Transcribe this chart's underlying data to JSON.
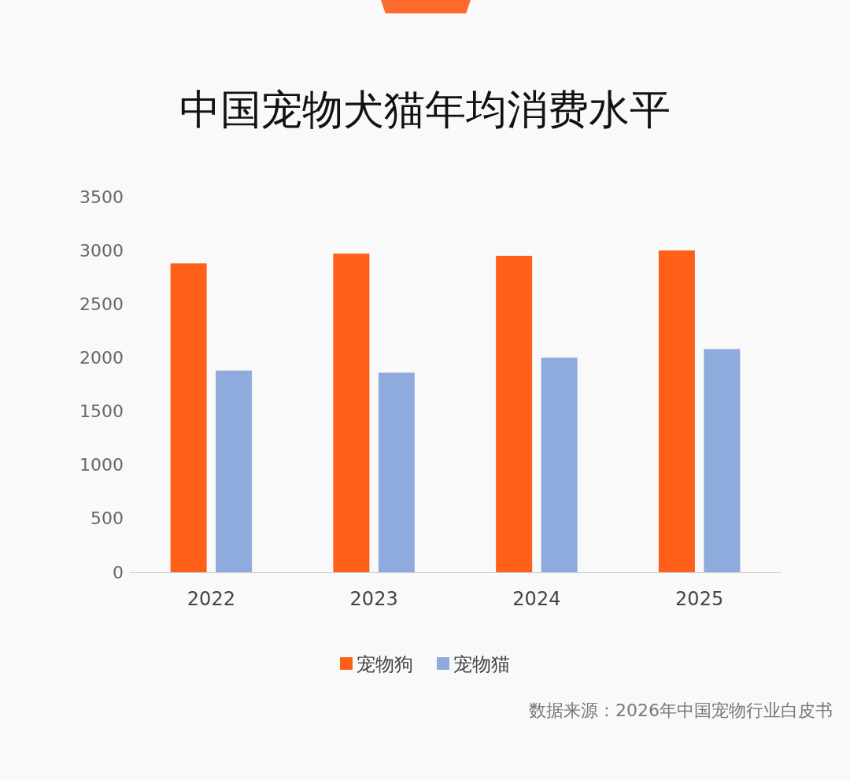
{
  "chart_data": {
    "type": "bar",
    "title": "中国宠物犬猫年均消费水平",
    "categories": [
      "2022",
      "2023",
      "2024",
      "2025"
    ],
    "series": [
      {
        "name": "宠物狗",
        "color": "#fe5f19",
        "values": [
          2880,
          2970,
          2950,
          3000
        ]
      },
      {
        "name": "宠物猫",
        "color": "#8faadc",
        "values": [
          1880,
          1860,
          2000,
          2080
        ]
      }
    ],
    "ylim": [
      0,
      3500
    ],
    "yticks": [
      0,
      500,
      1000,
      1500,
      2000,
      2500,
      3000,
      3500
    ],
    "grid": false,
    "legend": "bottom",
    "annotations": [
      "数据来源：2026年中国宠物行业白皮书"
    ]
  }
}
